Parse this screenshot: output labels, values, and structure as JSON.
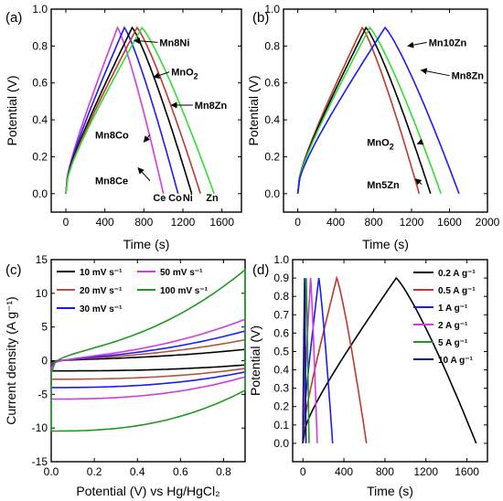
{
  "figure": {
    "panels": [
      "(a)",
      "(b)",
      "(c)",
      "(d)"
    ]
  },
  "colors": {
    "black": "#000000",
    "red": "#c0392b",
    "brown": "#b5533c",
    "green": "#1f9a1f",
    "lime": "#33dd33",
    "blue": "#1a1aff",
    "purple": "#b03bd6",
    "magenta": "#d23be0",
    "navy": "#10108a"
  },
  "chart_data": [
    {
      "id": "a",
      "type": "line",
      "xlabel": "Time (s)",
      "ylabel": "Potential (V)",
      "xlim": [
        -150,
        1800
      ],
      "ylim": [
        -0.1,
        1.0
      ],
      "xticks": [
        0,
        400,
        800,
        1200,
        1600
      ],
      "yticks": [
        0.0,
        0.2,
        0.4,
        0.6,
        0.8,
        1.0
      ],
      "series": [
        {
          "name": "Ce",
          "color": "#d23be0",
          "peak_time": 530,
          "end_time": 1000,
          "label": "Ce",
          "label_at": [
            960,
            -0.04
          ]
        },
        {
          "name": "Co",
          "color": "#1a1aff",
          "peak_time": 600,
          "end_time": 1150,
          "label": "Co",
          "label_at": [
            1120,
            -0.04
          ]
        },
        {
          "name": "Ni",
          "color": "#000000",
          "peak_time": 680,
          "end_time": 1290,
          "label": "Ni",
          "label_at": [
            1250,
            -0.04
          ]
        },
        {
          "name": "MnO2",
          "color": "#c0392b",
          "peak_time": 730,
          "end_time": 1380
        },
        {
          "name": "Zn",
          "color": "#33dd33",
          "peak_time": 780,
          "end_time": 1520,
          "label": "Zn",
          "label_at": [
            1500,
            -0.04
          ]
        }
      ],
      "annotations": [
        {
          "text": "Mn8Ni",
          "sub": "",
          "at": [
            960,
            0.8
          ],
          "arrow_to": [
            700,
            0.83
          ]
        },
        {
          "text": "MnO",
          "sub": "2",
          "at": [
            1080,
            0.64
          ],
          "arrow_to": [
            900,
            0.63
          ]
        },
        {
          "text": "Mn8Zn",
          "sub": "",
          "at": [
            1320,
            0.46
          ],
          "arrow_to": [
            1080,
            0.48
          ]
        },
        {
          "text": "Mn8Co",
          "sub": "",
          "at": [
            300,
            0.3
          ],
          "arrow_to": [
            800,
            0.28
          ]
        },
        {
          "text": "Mn8Ce",
          "sub": "",
          "at": [
            300,
            0.05
          ],
          "arrow_to": [
            740,
            0.14
          ]
        }
      ]
    },
    {
      "id": "b",
      "type": "line",
      "xlabel": "Time (s)",
      "ylabel": "Potential (V)",
      "xlim": [
        -150,
        2000
      ],
      "ylim": [
        -0.1,
        1.0
      ],
      "xticks": [
        0,
        400,
        800,
        1200,
        1600,
        2000
      ],
      "yticks": [
        0.0,
        0.2,
        0.4,
        0.6,
        0.8,
        1.0
      ],
      "series": [
        {
          "name": "Mn5Zn",
          "color": "#c0392b",
          "peak_time": 680,
          "end_time": 1280
        },
        {
          "name": "MnO2",
          "color": "#000000",
          "peak_time": 720,
          "end_time": 1400
        },
        {
          "name": "Mn8Zn",
          "color": "#33dd33",
          "peak_time": 760,
          "end_time": 1510
        },
        {
          "name": "Mn10Zn",
          "color": "#1a1aff",
          "peak_time": 920,
          "end_time": 1700
        }
      ],
      "annotations": [
        {
          "text": "Mn10Zn",
          "sub": "",
          "at": [
            1380,
            0.8
          ],
          "arrow_to": [
            1160,
            0.8
          ]
        },
        {
          "text": "Mn8Zn",
          "sub": "",
          "at": [
            1620,
            0.62
          ],
          "arrow_to": [
            1300,
            0.67
          ]
        },
        {
          "text": "MnO",
          "sub": "2",
          "at": [
            730,
            0.26
          ],
          "arrow_to": [
            1260,
            0.27
          ]
        },
        {
          "text": "Mn5Zn",
          "sub": "",
          "at": [
            730,
            0.03
          ],
          "arrow_to": [
            1240,
            0.08
          ]
        }
      ]
    },
    {
      "id": "c",
      "type": "line",
      "xlabel": "Potential (V) vs Hg/HgCl₂",
      "ylabel": "Current density (A g⁻¹)",
      "xlim": [
        0.0,
        0.9
      ],
      "ylim": [
        -15,
        15
      ],
      "xticks": [
        0.0,
        0.2,
        0.4,
        0.6,
        0.8
      ],
      "yticks": [
        -15,
        -10,
        -5,
        0,
        5,
        10,
        15
      ],
      "series": [
        {
          "name": "10 mV s⁻¹",
          "color": "#000000",
          "amplitude": 1.6,
          "bottom": -1.6,
          "slope": 1.5
        },
        {
          "name": "20 mV s⁻¹",
          "color": "#b5533c",
          "amplitude": 3.0,
          "bottom": -2.9,
          "slope": 2.0
        },
        {
          "name": "30 mV s⁻¹",
          "color": "#1a1aff",
          "amplitude": 4.3,
          "bottom": -4.2,
          "slope": 2.3
        },
        {
          "name": "50 mV s⁻¹",
          "color": "#d23be0",
          "amplitude": 6.0,
          "bottom": -6.0,
          "slope": 2.8
        },
        {
          "name": "100 mV s⁻¹",
          "color": "#1f9a1f",
          "amplitude": 13.2,
          "bottom": -11.0,
          "slope": 6.0
        }
      ]
    },
    {
      "id": "d",
      "type": "line",
      "xlabel": "Time (s)",
      "ylabel": "Potential (V)",
      "xlim": [
        -100,
        1800
      ],
      "ylim": [
        -0.1,
        1.0
      ],
      "xticks": [
        0,
        400,
        800,
        1200,
        1600
      ],
      "yticks": [
        0.0,
        0.1,
        0.2,
        0.3,
        0.4,
        0.5,
        0.6,
        0.7,
        0.8,
        0.9,
        1.0
      ],
      "series": [
        {
          "name": "0.2 A g⁻¹",
          "color": "#000000",
          "peak_time": 910,
          "end_time": 1690
        },
        {
          "name": "0.5 A g⁻¹",
          "color": "#c0392b",
          "peak_time": 330,
          "end_time": 620
        },
        {
          "name": "1 A g⁻¹",
          "color": "#1a1aff",
          "peak_time": 155,
          "end_time": 290
        },
        {
          "name": "2 A g⁻¹",
          "color": "#d23be0",
          "peak_time": 75,
          "end_time": 140
        },
        {
          "name": "5 A g⁻¹",
          "color": "#1f9a1f",
          "peak_time": 32,
          "end_time": 60
        },
        {
          "name": "10 A g⁻¹",
          "color": "#10108a",
          "peak_time": 16,
          "end_time": 30
        }
      ]
    }
  ]
}
